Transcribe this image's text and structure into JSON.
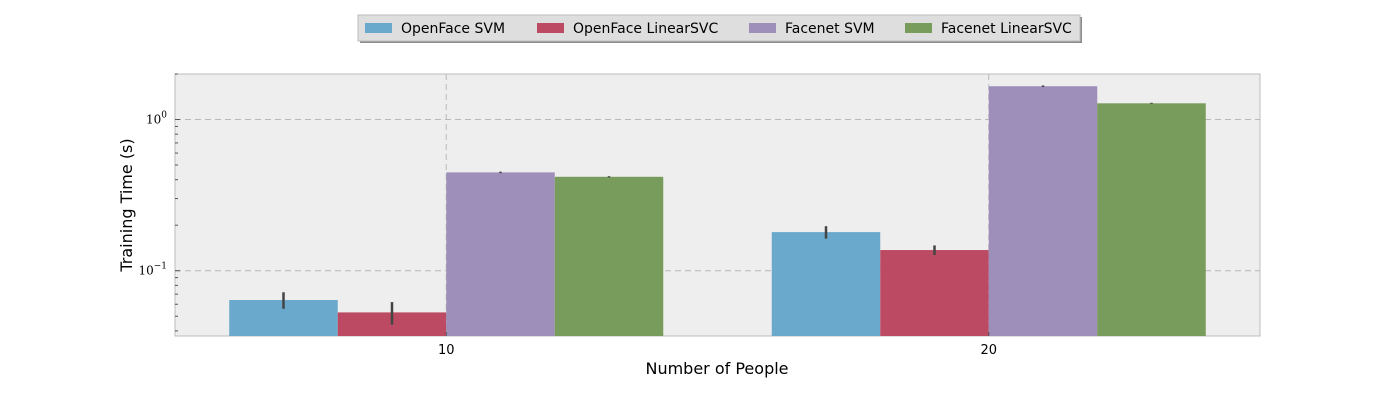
{
  "chart_data": {
    "type": "bar",
    "categories": [
      "10",
      "20"
    ],
    "xlabel": "Number of People",
    "ylabel": "Training Time (s)",
    "yscale": "log",
    "ylim": [
      0.037,
      2.0
    ],
    "yticks": [
      {
        "value": 0.1,
        "base": "10",
        "exp": "−1"
      },
      {
        "value": 1,
        "base": "10",
        "exp": "0"
      }
    ],
    "grid": true,
    "legend_position": "top-center",
    "series": [
      {
        "name": "OpenFace SVM",
        "color": "#6aa8cc",
        "values": [
          0.064,
          0.18
        ],
        "err_low": [
          0.056,
          0.163
        ],
        "err_high": [
          0.072,
          0.197
        ]
      },
      {
        "name": "OpenFace LinearSVC",
        "color": "#bc4a62",
        "values": [
          0.053,
          0.137
        ],
        "err_low": [
          0.044,
          0.127
        ],
        "err_high": [
          0.062,
          0.147
        ]
      },
      {
        "name": "Facenet SVM",
        "color": "#9d8fba",
        "values": [
          0.447,
          1.66
        ],
        "err_low": [
          0.442,
          1.64
        ],
        "err_high": [
          0.452,
          1.68
        ]
      },
      {
        "name": "Facenet LinearSVC",
        "color": "#789c5c",
        "values": [
          0.418,
          1.28
        ],
        "err_low": [
          0.414,
          1.27
        ],
        "err_high": [
          0.422,
          1.29
        ]
      }
    ]
  }
}
